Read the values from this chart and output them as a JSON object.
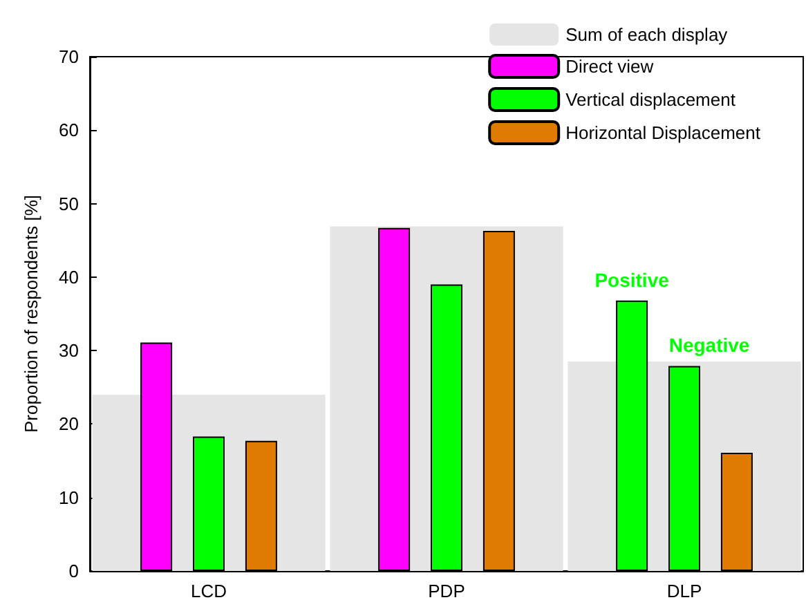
{
  "chart_data": {
    "type": "bar",
    "ylabel": "Proportion of respondents [%]",
    "categories": [
      "LCD",
      "PDP",
      "DLP"
    ],
    "series": [
      {
        "name": "Sum of each display",
        "color": "#e5e5e5",
        "values": [
          24.0,
          46.9,
          28.5
        ]
      },
      {
        "name": "Direct view",
        "color": "#ff00ff",
        "colors": [
          "#ff00ff",
          "#ff00ff",
          "#00ff00"
        ],
        "values": [
          31.1,
          46.7,
          36.8
        ],
        "value_labels": [
          null,
          null,
          "Positive"
        ]
      },
      {
        "name": "Vertical displacement",
        "color": "#00ff00",
        "values": [
          18.3,
          39.0,
          27.9
        ],
        "value_labels": [
          null,
          null,
          "Negative"
        ]
      },
      {
        "name": "Horizontal Displacement",
        "color": "#df7c00",
        "values": [
          17.7,
          46.3,
          16.1
        ]
      }
    ],
    "ylim": [
      0,
      70
    ],
    "yticks": [
      0,
      10,
      20,
      30,
      40,
      50,
      60,
      70
    ],
    "grid": false,
    "legend": "top right"
  }
}
